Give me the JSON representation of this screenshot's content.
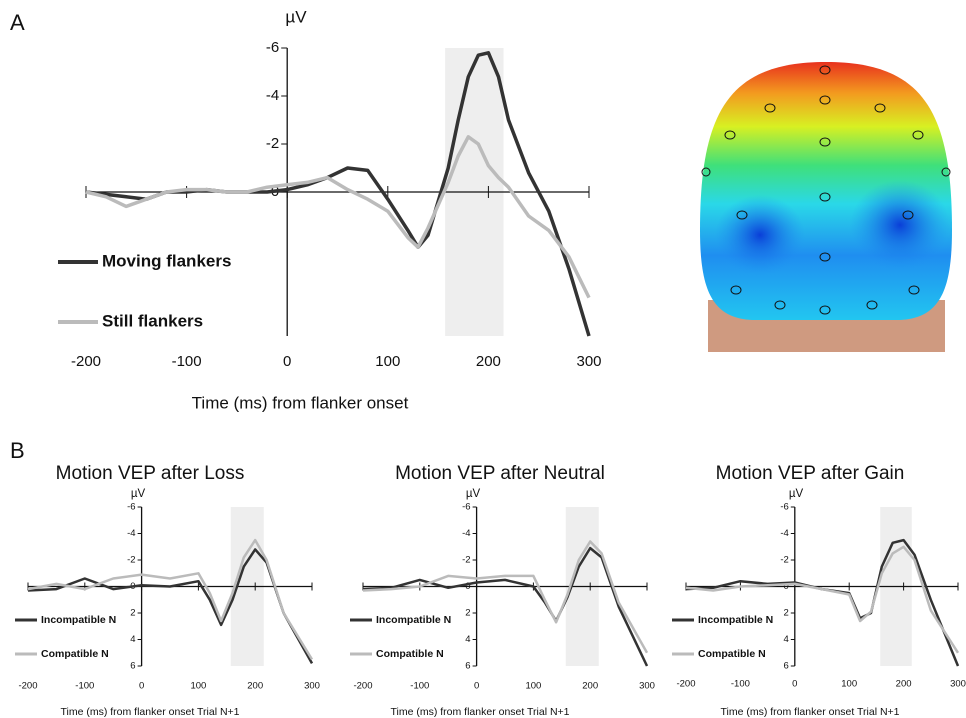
{
  "panel_labels": [
    "A",
    "B"
  ],
  "chart_data": [
    {
      "type": "line",
      "y_label": "µV",
      "x_label": "Time (ms) from flanker onset",
      "x": [
        -200,
        -180,
        -160,
        -140,
        -120,
        -100,
        -80,
        -60,
        -40,
        -20,
        0,
        20,
        40,
        60,
        80,
        100,
        120,
        130,
        140,
        160,
        170,
        180,
        190,
        200,
        210,
        220,
        240,
        260,
        280,
        300
      ],
      "series": [
        {
          "name": "Moving flankers",
          "color": "#333333",
          "values": [
            0,
            0.1,
            0.2,
            0.3,
            0,
            0,
            -0.1,
            0,
            0,
            0,
            -0.1,
            -0.3,
            -0.6,
            -1,
            -0.9,
            0.3,
            1.6,
            2.3,
            1.8,
            -1,
            -3,
            -4.8,
            -5.7,
            -5.8,
            -4.8,
            -3,
            -0.8,
            0.8,
            3.2,
            6
          ]
        },
        {
          "name": "Still flankers",
          "color": "#bbbbbb",
          "values": [
            0,
            0.2,
            0.6,
            0.3,
            0,
            -0.1,
            -0.1,
            0,
            0,
            -0.2,
            -0.3,
            -0.4,
            -0.6,
            -0.1,
            0.3,
            0.8,
            1.9,
            2.3,
            1.5,
            -0.4,
            -1.5,
            -2.3,
            -2,
            -1.1,
            -0.6,
            -0.2,
            1,
            1.6,
            2.7,
            4.4
          ]
        }
      ],
      "shaded_region": [
        157,
        215
      ],
      "xlim": [
        -200,
        300
      ],
      "xticks": [
        -200,
        -100,
        0,
        100,
        200,
        300
      ],
      "ylim": [
        6,
        -6
      ],
      "yticks": [
        -6,
        -4,
        -2,
        0
      ]
    },
    {
      "type": "line",
      "title": "Motion VEP after Loss",
      "y_label": "µV",
      "x_label": "Time (ms) from flanker onset Trial N+1",
      "x": [
        -200,
        -150,
        -100,
        -50,
        0,
        50,
        100,
        120,
        140,
        160,
        180,
        200,
        220,
        250,
        300
      ],
      "series": [
        {
          "name": "Incompatible N",
          "color": "#333333",
          "values": [
            0.3,
            0.2,
            -0.6,
            0.2,
            -0.1,
            0,
            -0.4,
            1,
            2.9,
            1,
            -1.5,
            -2.8,
            -1.8,
            2,
            5.8
          ]
        },
        {
          "name": "Compatible N",
          "color": "#bbbbbb",
          "values": [
            0.2,
            -0.2,
            0.2,
            -0.6,
            -0.9,
            -0.6,
            -1,
            0.5,
            2.6,
            0.5,
            -2.2,
            -3.5,
            -2,
            2,
            5.5
          ]
        }
      ],
      "shaded_region": [
        157,
        215
      ],
      "xlim": [
        -200,
        300
      ],
      "xticks": [
        -200,
        -100,
        0,
        100,
        200,
        300
      ],
      "ylim": [
        6,
        -6
      ],
      "yticks": [
        -6,
        -4,
        -2,
        0,
        2,
        4,
        6
      ]
    },
    {
      "type": "line",
      "title": "Motion VEP after Neutral",
      "y_label": "µV",
      "x_label": "Time (ms) from flanker onset Trial N+1",
      "x": [
        -200,
        -150,
        -100,
        -50,
        0,
        50,
        100,
        120,
        140,
        160,
        180,
        200,
        220,
        250,
        300
      ],
      "series": [
        {
          "name": "Incompatible N",
          "color": "#333333",
          "values": [
            0.2,
            0.1,
            -0.5,
            0.1,
            -0.3,
            -0.5,
            0,
            1.2,
            2.6,
            0.8,
            -1.5,
            -2.9,
            -2.2,
            1.5,
            6
          ]
        },
        {
          "name": "Compatible N",
          "color": "#bbbbbb",
          "values": [
            0.3,
            0.2,
            0,
            -0.8,
            -0.6,
            -0.8,
            -0.8,
            1,
            2.7,
            0.6,
            -2,
            -3.4,
            -2.5,
            1.2,
            5
          ]
        }
      ],
      "shaded_region": [
        157,
        215
      ],
      "xlim": [
        -200,
        300
      ],
      "xticks": [
        -200,
        -100,
        0,
        100,
        200,
        300
      ],
      "ylim": [
        6,
        -6
      ],
      "yticks": [
        -6,
        -4,
        -2,
        0,
        2,
        4,
        6
      ]
    },
    {
      "type": "line",
      "title": "Motion VEP after Gain",
      "y_label": "µV",
      "x_label": "Time (ms) from flanker onset Trial N+1",
      "x": [
        -200,
        -150,
        -100,
        -50,
        0,
        50,
        100,
        120,
        140,
        160,
        180,
        200,
        220,
        250,
        300
      ],
      "series": [
        {
          "name": "Incompatible N",
          "color": "#333333",
          "values": [
            0.2,
            0.1,
            -0.4,
            -0.2,
            -0.3,
            0.2,
            0.5,
            2.4,
            2,
            -1.5,
            -3.3,
            -3.5,
            -2.4,
            1,
            6
          ]
        },
        {
          "name": "Compatible N",
          "color": "#bbbbbb",
          "values": [
            0.1,
            0.3,
            0,
            -0.1,
            -0.2,
            0.2,
            0.6,
            2.6,
            1.9,
            -1,
            -2.5,
            -3,
            -2,
            1.8,
            5
          ]
        }
      ],
      "shaded_region": [
        157,
        215
      ],
      "xlim": [
        -200,
        300
      ],
      "xticks": [
        -200,
        -100,
        0,
        100,
        200,
        300
      ],
      "ylim": [
        6,
        -6
      ],
      "yticks": [
        -6,
        -4,
        -2,
        0,
        2,
        4,
        6
      ]
    }
  ]
}
